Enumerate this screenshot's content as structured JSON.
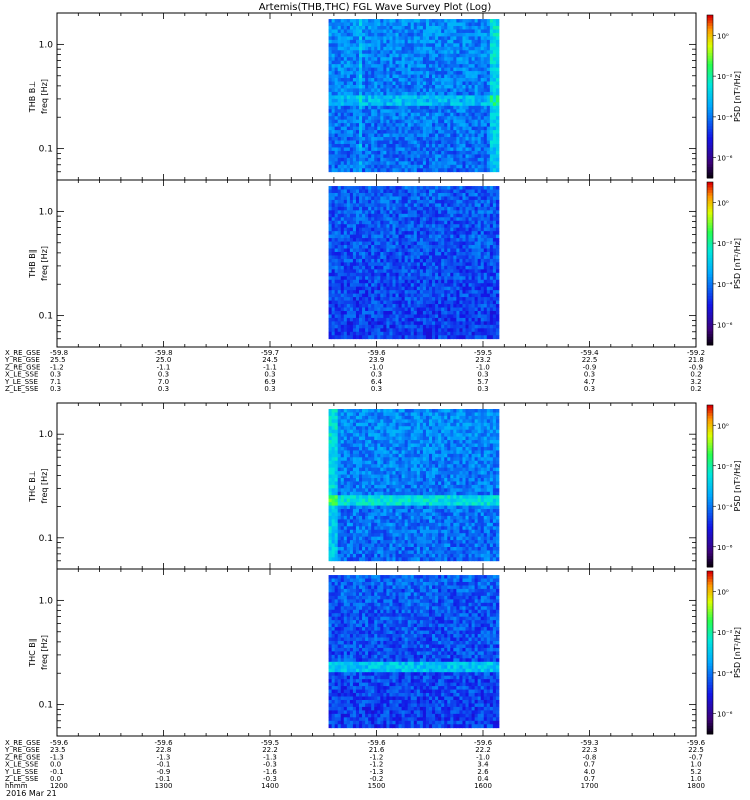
{
  "chart_data": {
    "type": "heatmap",
    "title": "Artemis(THB,THC) FGL Wave Survey Plot (Log)",
    "date_label": "2016 Mar 21",
    "x_unit_label": "hhmm",
    "colorbar_label": "PSD [nT²/Hz]",
    "colorbar_ticks": [
      "10⁰",
      "10⁻²",
      "10⁻⁴",
      "10⁻⁶"
    ],
    "colorbar_exponents": [
      0,
      -2,
      -4,
      -6
    ],
    "y_scale": "log",
    "y_ticks": [
      "1.0",
      "0.1"
    ],
    "ylim": [
      0.05,
      2.0
    ],
    "xlim": [
      1200,
      1800
    ],
    "data_extent": [
      1455,
      1615
    ],
    "x_ticks": [
      "1200",
      "1300",
      "1400",
      "1500",
      "1600",
      "1700",
      "1800"
    ],
    "panels": [
      {
        "probe": "THB",
        "component": "B⊥",
        "ylabel_probe": "THB B⊥",
        "ylabel_freq": "freq [Hz]"
      },
      {
        "probe": "THB",
        "component": "B∥",
        "ylabel_probe": "THB B∥",
        "ylabel_freq": "freq [Hz]"
      },
      {
        "probe": "THC",
        "component": "B⊥",
        "ylabel_probe": "THC B⊥",
        "ylabel_freq": "freq [Hz]"
      },
      {
        "probe": "THC",
        "component": "B∥",
        "ylabel_probe": "THC B∥",
        "ylabel_freq": "freq [Hz]"
      }
    ],
    "ephemeris": [
      {
        "probe": "THB",
        "rows": [
          {
            "label": "X_RE_GSE",
            "values": [
              "-59.8",
              "-59.8",
              "-59.7",
              "-59.6",
              "-59.5",
              "-59.4",
              "-59.2"
            ]
          },
          {
            "label": "Y_RE_GSE",
            "values": [
              "25.5",
              "25.0",
              "24.5",
              "23.9",
              "23.2",
              "22.5",
              "21.8"
            ]
          },
          {
            "label": "Z_RE_GSE",
            "values": [
              "-1.2",
              "-1.1",
              "-1.1",
              "-1.0",
              "-1.0",
              "-0.9",
              "-0.9"
            ]
          },
          {
            "label": "X_LE_SSE",
            "values": [
              "0.3",
              "0.3",
              "0.3",
              "0.3",
              "0.3",
              "0.3",
              "0.2"
            ]
          },
          {
            "label": "Y_LE_SSE",
            "values": [
              "7.1",
              "7.0",
              "6.9",
              "6.4",
              "5.7",
              "4.7",
              "3.2"
            ]
          },
          {
            "label": "Z_LE_SSE",
            "values": [
              "0.3",
              "0.3",
              "0.3",
              "0.3",
              "0.3",
              "0.3",
              "0.2"
            ]
          }
        ]
      },
      {
        "probe": "THC",
        "rows": [
          {
            "label": "X_RE_GSE",
            "values": [
              "-59.6",
              "-59.6",
              "-59.5",
              "-59.6",
              "-59.6",
              "-59.3",
              "-59.6"
            ]
          },
          {
            "label": "Y_RE_GSE",
            "values": [
              "23.5",
              "22.8",
              "22.2",
              "21.6",
              "22.2",
              "22.3",
              "22.5"
            ]
          },
          {
            "label": "Z_RE_GSE",
            "values": [
              "-1.3",
              "-1.3",
              "-1.3",
              "-1.2",
              "-1.0",
              "-0.8",
              "-0.7"
            ]
          },
          {
            "label": "X_LE_SSE",
            "values": [
              "0.0",
              "-0.1",
              "-0.3",
              "-1.2",
              "3.4",
              "0.7",
              "1.0"
            ]
          },
          {
            "label": "Y_LE_SSE",
            "values": [
              "-0.1",
              "-0.9",
              "-1.6",
              "-1.3",
              "2.6",
              "4.0",
              "5.2"
            ]
          },
          {
            "label": "Z_LE_SSE",
            "values": [
              "0.0",
              "-0.1",
              "-0.3",
              "-0.2",
              "0.4",
              "0.7",
              "1.0"
            ]
          }
        ]
      }
    ]
  }
}
